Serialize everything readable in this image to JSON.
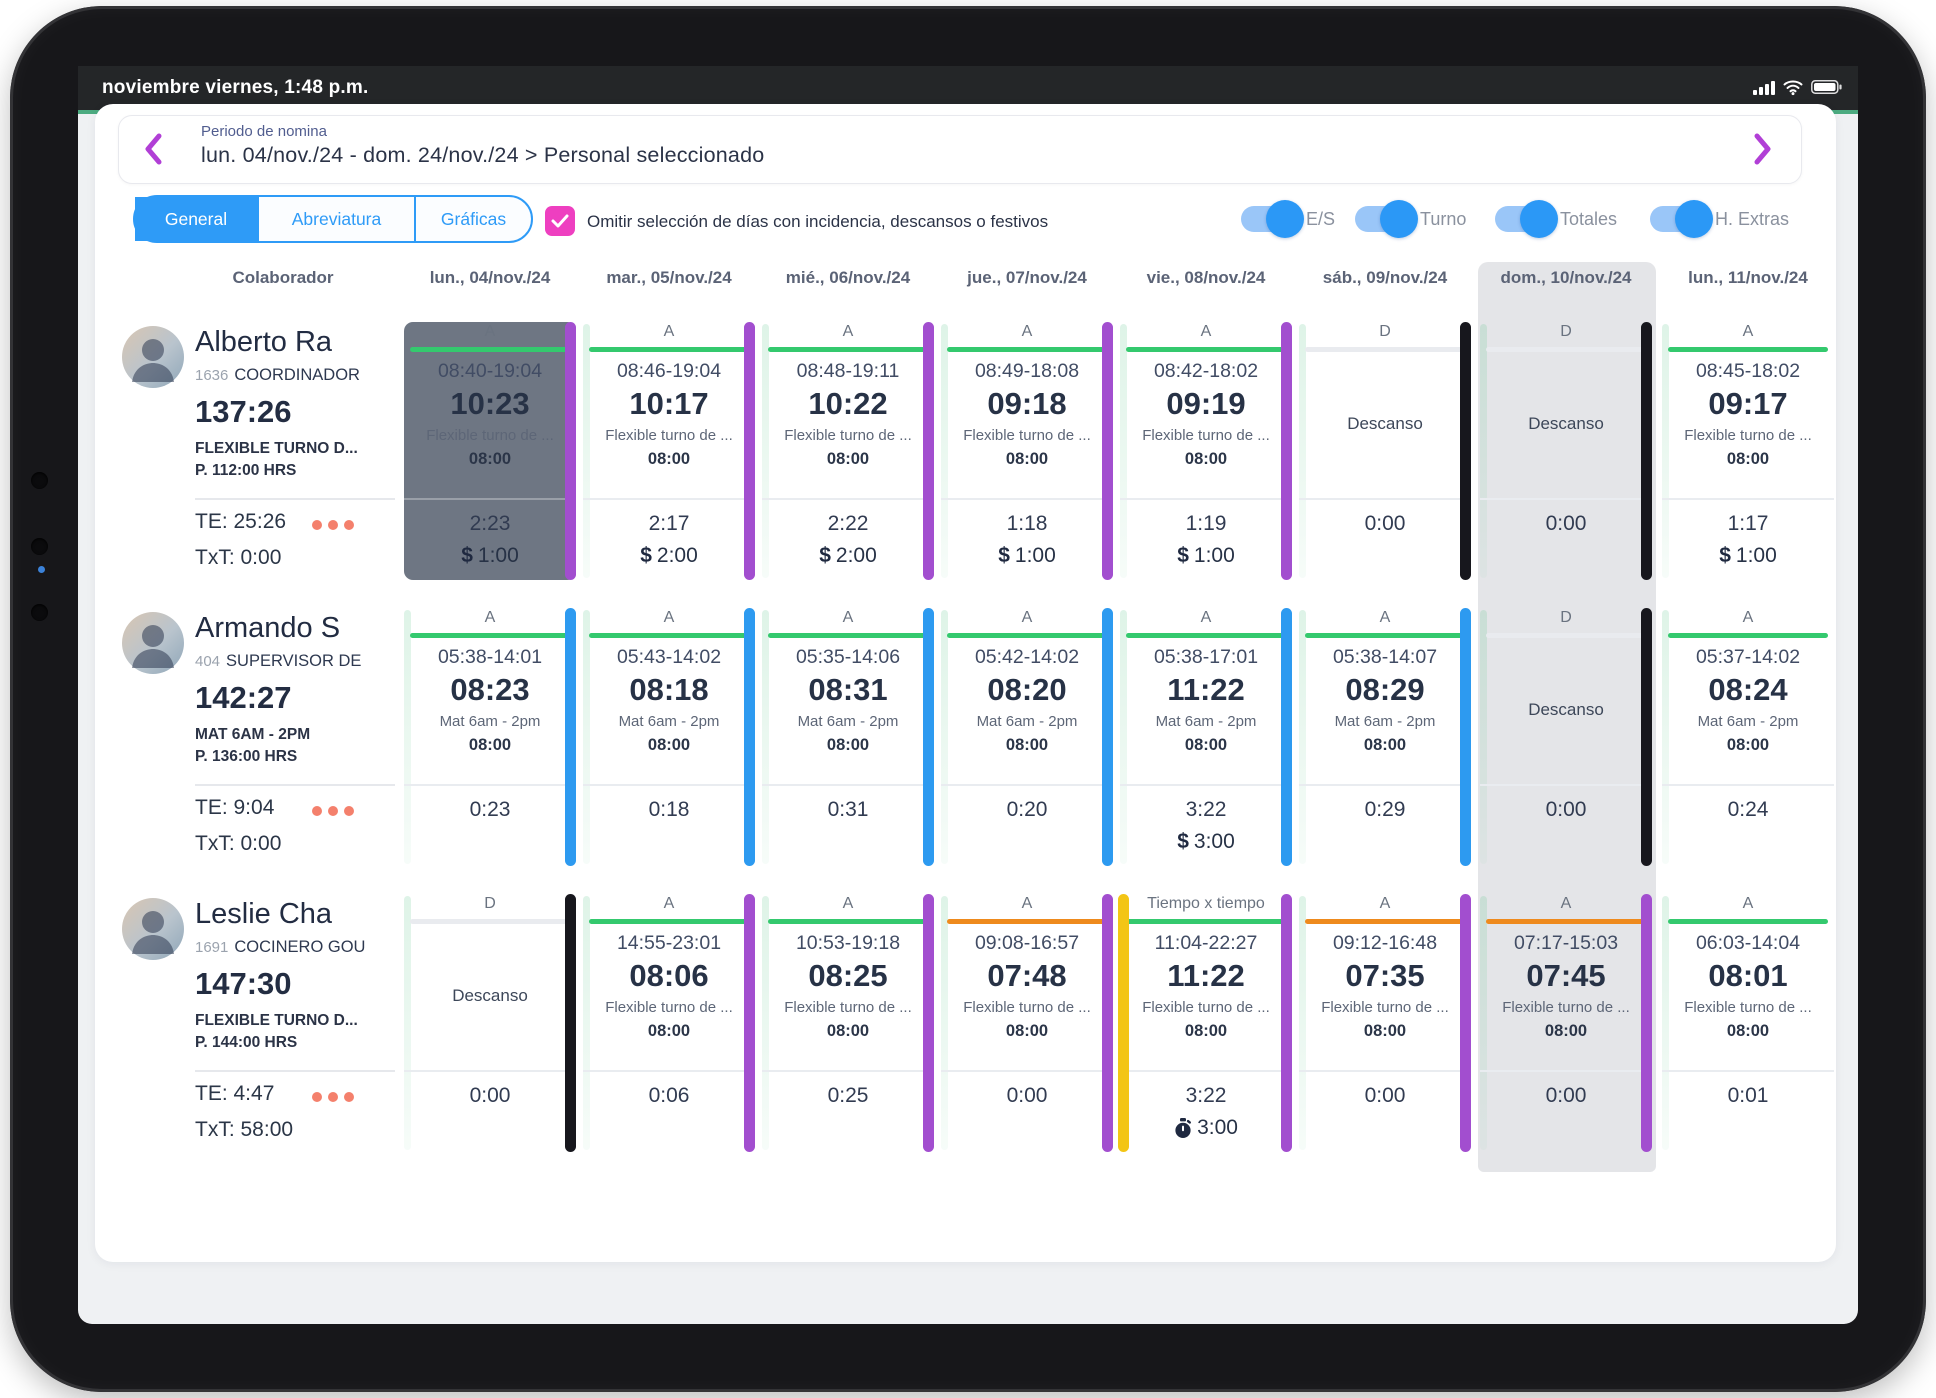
{
  "colors": {
    "accent_blue": "#2e9bf7",
    "pink": "#ee3fc0",
    "status_green": "#4cab80",
    "green": "#34c96e",
    "orange": "#ee8a1d",
    "lightgray": "#e9ebef",
    "purple": "#a24ecf",
    "blue": "#2d9af0",
    "black": "#17171d",
    "yellow": "#f3c515",
    "selected_cell": "#6e7683",
    "day_highlight": "#e4e5e8"
  },
  "status_bar": {
    "text": "noviembre viernes, 1:48 p.m."
  },
  "header": {
    "label": "Periodo de nomina",
    "range": "lun. 04/nov./24 - dom. 24/nov./24 > Personal seleccionado"
  },
  "toolbar": {
    "tabs": [
      {
        "label": "General",
        "active": true
      },
      {
        "label": "Abreviatura",
        "active": false
      },
      {
        "label": "Gráficas",
        "active": false
      }
    ],
    "filter_checkbox": {
      "checked": true,
      "label": "Omitir selección de días con incidencia, descansos o festivos"
    },
    "toggles": [
      {
        "label": "E/S",
        "on": true
      },
      {
        "label": "Turno",
        "on": true
      },
      {
        "label": "Totales",
        "on": true
      },
      {
        "label": "H. Extras",
        "on": true
      }
    ]
  },
  "table": {
    "collaborator_header": "Colaborador",
    "days": [
      {
        "label": "lun., 04/nov./24",
        "highlighted": false
      },
      {
        "label": "mar., 05/nov./24",
        "highlighted": false
      },
      {
        "label": "mié., 06/nov./24",
        "highlighted": false
      },
      {
        "label": "jue., 07/nov./24",
        "highlighted": false
      },
      {
        "label": "vie., 08/nov./24",
        "highlighted": false
      },
      {
        "label": "sáb., 09/nov./24",
        "highlighted": false
      },
      {
        "label": "dom., 10/nov./24",
        "highlighted": true
      },
      {
        "label": "lun., 11/nov./24",
        "highlighted": false
      }
    ],
    "employees": [
      {
        "name": "Alberto Ra",
        "employee_id": "1636",
        "role": "COORDINADOR",
        "total_hours": "137:26",
        "shift_name": "FLEXIBLE TURNO D...",
        "planned_hours": "P. 112:00 HRS",
        "te": "TE: 25:26",
        "txt": "TxT: 0:00",
        "cells": [
          {
            "tag": "A",
            "line": "green",
            "selected": true,
            "schedule": "08:40-19:04",
            "worked": "10:23",
            "shift": "Flexible turno de ...",
            "planned": "08:00",
            "extra": "2:23",
            "bonus": "1:00",
            "bonus_icon": "dollar",
            "bar_right": "purple"
          },
          {
            "tag": "A",
            "line": "green",
            "schedule": "08:46-19:04",
            "worked": "10:17",
            "shift": "Flexible turno de ...",
            "planned": "08:00",
            "extra": "2:17",
            "bonus": "2:00",
            "bonus_icon": "dollar",
            "bar_right": "purple"
          },
          {
            "tag": "A",
            "line": "green",
            "schedule": "08:48-19:11",
            "worked": "10:22",
            "shift": "Flexible turno de ...",
            "planned": "08:00",
            "extra": "2:22",
            "bonus": "2:00",
            "bonus_icon": "dollar",
            "bar_right": "purple"
          },
          {
            "tag": "A",
            "line": "green",
            "schedule": "08:49-18:08",
            "worked": "09:18",
            "shift": "Flexible turno de ...",
            "planned": "08:00",
            "extra": "1:18",
            "bonus": "1:00",
            "bonus_icon": "dollar",
            "bar_right": "purple"
          },
          {
            "tag": "A",
            "line": "green",
            "schedule": "08:42-18:02",
            "worked": "09:19",
            "shift": "Flexible turno de ...",
            "planned": "08:00",
            "extra": "1:19",
            "bonus": "1:00",
            "bonus_icon": "dollar",
            "bar_right": "purple"
          },
          {
            "tag": "D",
            "line": "lightgray",
            "rest": "Descanso",
            "extra": "0:00",
            "bar_right": "black"
          },
          {
            "tag": "D",
            "line": "lightgray",
            "rest": "Descanso",
            "extra": "0:00",
            "bar_right": "black"
          },
          {
            "tag": "A",
            "line": "green",
            "schedule": "08:45-18:02",
            "worked": "09:17",
            "shift": "Flexible turno de ...",
            "planned": "08:00",
            "extra": "1:17",
            "bonus": "1:00",
            "bonus_icon": "dollar"
          }
        ]
      },
      {
        "name": "Armando S",
        "employee_id": "404",
        "role": "SUPERVISOR DE",
        "total_hours": "142:27",
        "shift_name": "MAT 6AM - 2PM",
        "planned_hours": "P. 136:00 HRS",
        "te": "TE: 9:04",
        "txt": "TxT: 0:00",
        "cells": [
          {
            "tag": "A",
            "line": "green",
            "schedule": "05:38-14:01",
            "worked": "08:23",
            "shift": "Mat 6am - 2pm",
            "planned": "08:00",
            "extra": "0:23",
            "bar_right": "blue"
          },
          {
            "tag": "A",
            "line": "green",
            "schedule": "05:43-14:02",
            "worked": "08:18",
            "shift": "Mat 6am - 2pm",
            "planned": "08:00",
            "extra": "0:18",
            "bar_right": "blue"
          },
          {
            "tag": "A",
            "line": "green",
            "schedule": "05:35-14:06",
            "worked": "08:31",
            "shift": "Mat 6am - 2pm",
            "planned": "08:00",
            "extra": "0:31",
            "bar_right": "blue"
          },
          {
            "tag": "A",
            "line": "green",
            "schedule": "05:42-14:02",
            "worked": "08:20",
            "shift": "Mat 6am - 2pm",
            "planned": "08:00",
            "extra": "0:20",
            "bar_right": "blue"
          },
          {
            "tag": "A",
            "line": "green",
            "schedule": "05:38-17:01",
            "worked": "11:22",
            "shift": "Mat 6am - 2pm",
            "planned": "08:00",
            "extra": "3:22",
            "bonus": "3:00",
            "bonus_icon": "dollar",
            "bar_right": "blue"
          },
          {
            "tag": "A",
            "line": "green",
            "schedule": "05:38-14:07",
            "worked": "08:29",
            "shift": "Mat 6am - 2pm",
            "planned": "08:00",
            "extra": "0:29",
            "bar_right": "blue"
          },
          {
            "tag": "D",
            "line": "lightgray",
            "rest": "Descanso",
            "extra": "0:00",
            "bar_right": "black"
          },
          {
            "tag": "A",
            "line": "green",
            "schedule": "05:37-14:02",
            "worked": "08:24",
            "shift": "Mat 6am - 2pm",
            "planned": "08:00",
            "extra": "0:24"
          }
        ]
      },
      {
        "name": "Leslie Cha",
        "employee_id": "1691",
        "role": "COCINERO GOU",
        "total_hours": "147:30",
        "shift_name": "FLEXIBLE TURNO D...",
        "planned_hours": "P. 144:00 HRS",
        "te": "TE: 4:47",
        "txt": "TxT: 58:00",
        "cells": [
          {
            "tag": "D",
            "line": "lightgray",
            "rest": "Descanso",
            "extra": "0:00",
            "bar_right": "black"
          },
          {
            "tag": "A",
            "line": "green",
            "schedule": "14:55-23:01",
            "worked": "08:06",
            "shift": "Flexible turno de ...",
            "planned": "08:00",
            "extra": "0:06",
            "bar_right": "purple"
          },
          {
            "tag": "A",
            "line": "green",
            "schedule": "10:53-19:18",
            "worked": "08:25",
            "shift": "Flexible turno de ...",
            "planned": "08:00",
            "extra": "0:25",
            "bar_right": "purple"
          },
          {
            "tag": "A",
            "line": "orange",
            "schedule": "09:08-16:57",
            "worked": "07:48",
            "shift": "Flexible turno de ...",
            "planned": "08:00",
            "extra": "0:00",
            "bar_right": "purple"
          },
          {
            "tag": "Tiempo x tiempo",
            "line": "green",
            "schedule": "11:04-22:27",
            "worked": "11:22",
            "shift": "Flexible turno de ...",
            "planned": "08:00",
            "extra": "3:22",
            "bonus": "3:00",
            "bonus_icon": "stopwatch",
            "bar_left": "yellow",
            "bar_right": "purple"
          },
          {
            "tag": "A",
            "line": "orange",
            "schedule": "09:12-16:48",
            "worked": "07:35",
            "shift": "Flexible turno de ...",
            "planned": "08:00",
            "extra": "0:00",
            "bar_right": "purple"
          },
          {
            "tag": "A",
            "line": "orange",
            "schedule": "07:17-15:03",
            "worked": "07:45",
            "shift": "Flexible turno de ...",
            "planned": "08:00",
            "extra": "0:00",
            "bar_right": "purple"
          },
          {
            "tag": "A",
            "line": "green",
            "schedule": "06:03-14:04",
            "worked": "08:01",
            "shift": "Flexible turno de ...",
            "planned": "08:00",
            "extra": "0:01"
          }
        ]
      }
    ]
  }
}
